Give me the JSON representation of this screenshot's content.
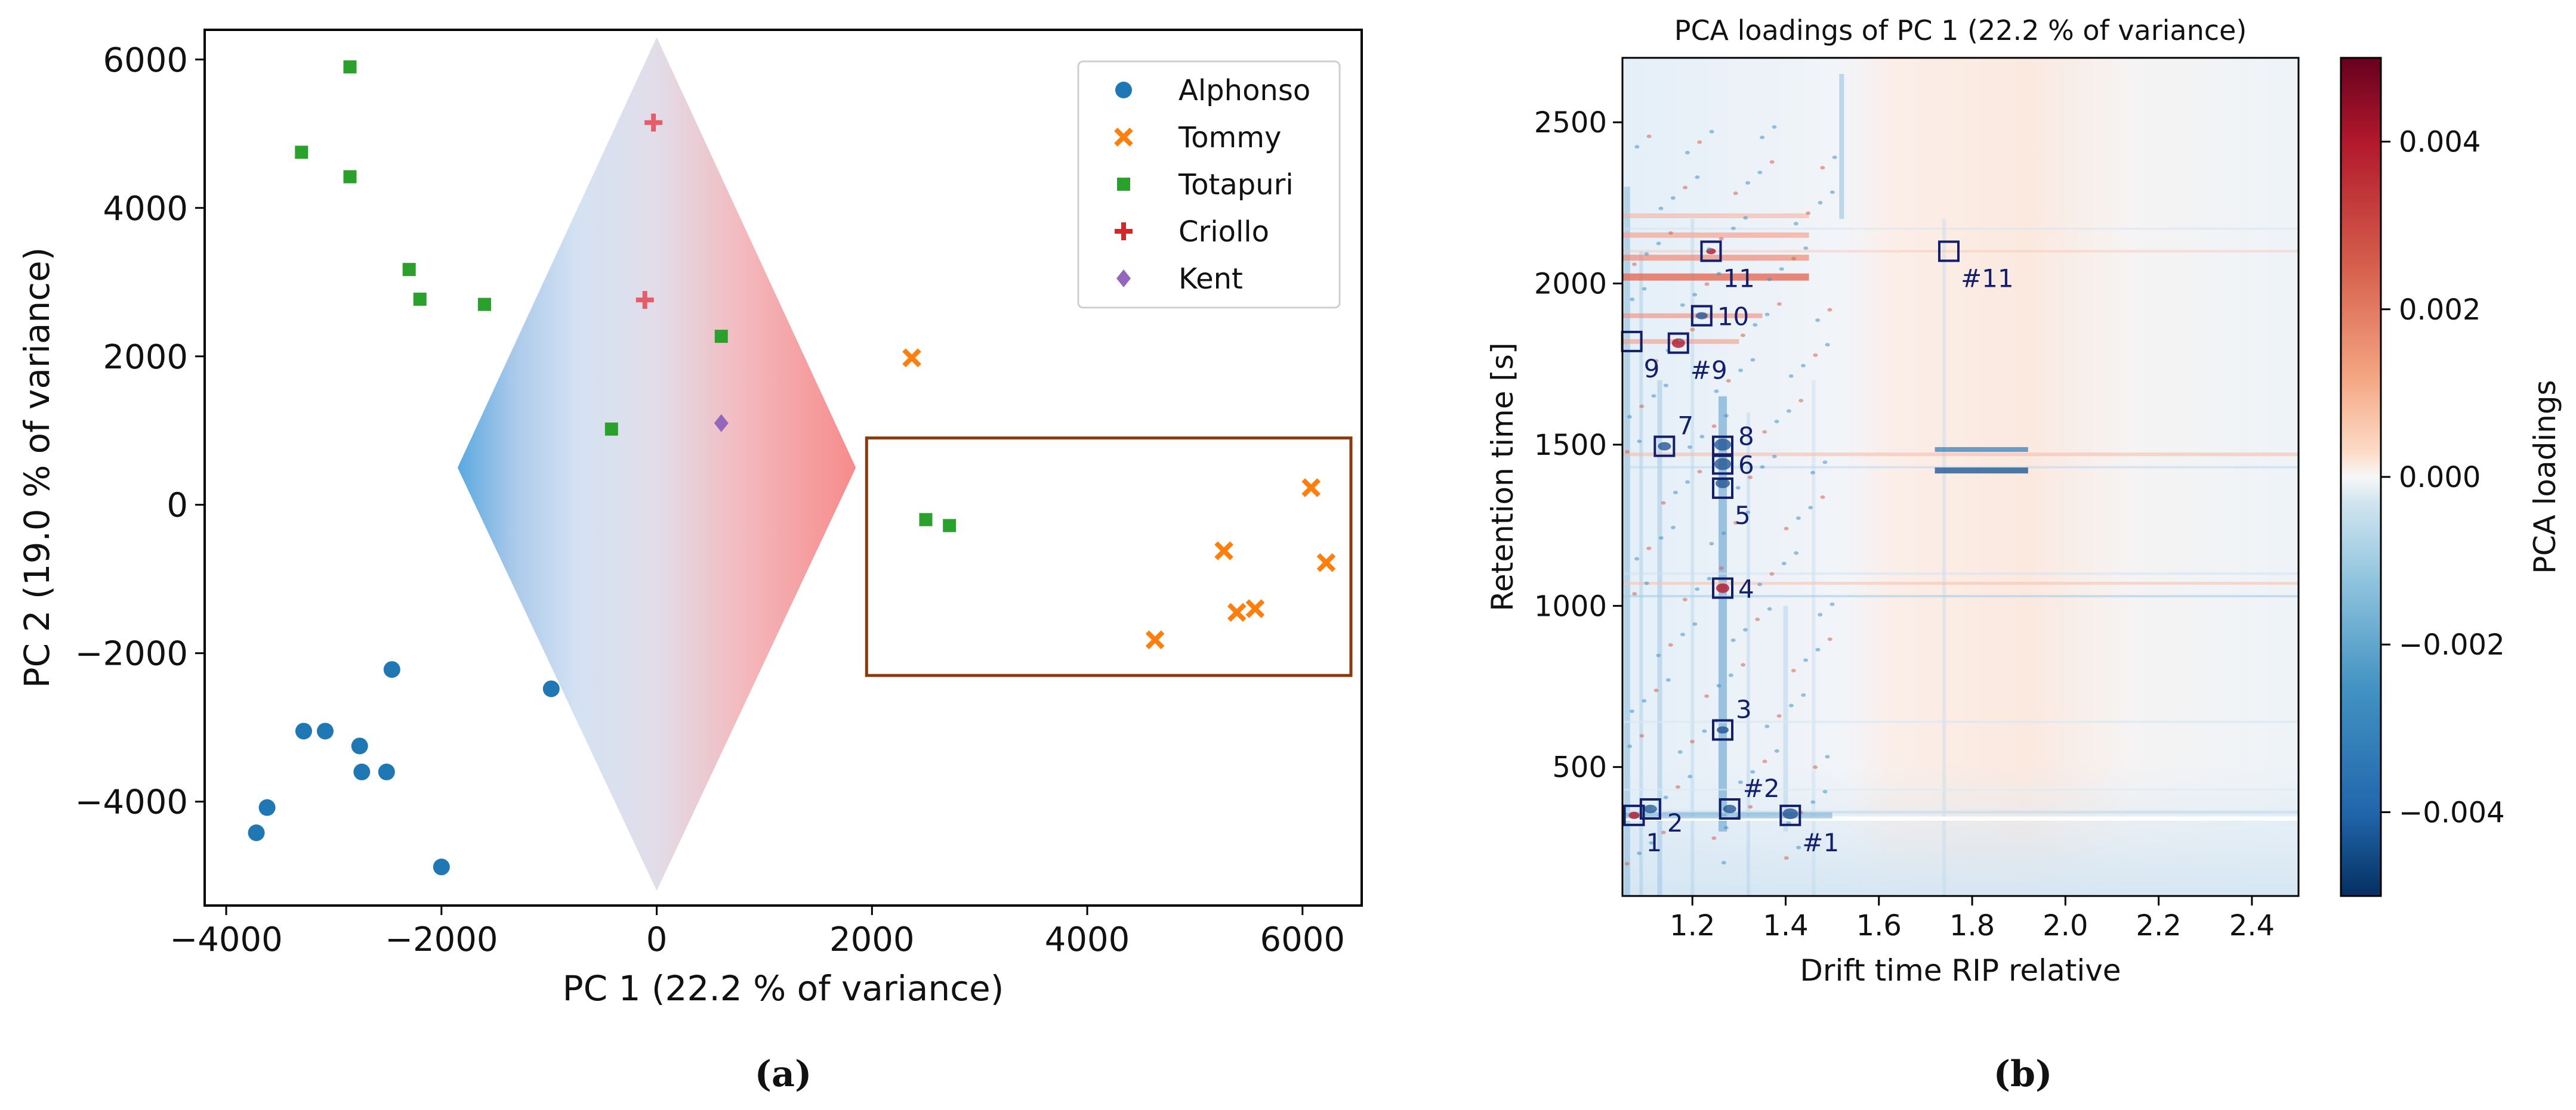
{
  "chart_data": [
    {
      "type": "scatter",
      "panel_label": "(a)",
      "title": "",
      "xlabel": "PC 1 (22.2 % of variance)",
      "ylabel": "PC 2 (19.0 % of variance)",
      "xlim": [
        -4200,
        6550
      ],
      "ylim": [
        -5400,
        6400
      ],
      "xticks": [
        -4000,
        -2000,
        0,
        2000,
        4000,
        6000
      ],
      "yticks": [
        -4000,
        -2000,
        0,
        2000,
        4000,
        6000
      ],
      "xtick_labels": [
        "−4000",
        "−2000",
        "0",
        "2000",
        "4000",
        "6000"
      ],
      "ytick_labels": [
        "−4000",
        "−2000",
        "0",
        "2000",
        "4000",
        "6000"
      ],
      "grid": false,
      "legend_position": "top-right",
      "series": [
        {
          "name": "Alphonso",
          "marker": "circle",
          "color": "#1f77b4",
          "x": [
            -3720,
            -3620,
            -3280,
            -3080,
            -2760,
            -2740,
            -2510,
            -2460,
            -2000,
            -980
          ],
          "y": [
            -4420,
            -4080,
            -3050,
            -3050,
            -3250,
            -3600,
            -3600,
            -2220,
            -4880,
            -2480
          ]
        },
        {
          "name": "Tommy",
          "marker": "x",
          "color": "#ff7f0e",
          "x": [
            2370,
            4630,
            5270,
            5390,
            5560,
            6080,
            6220
          ],
          "y": [
            1980,
            -1820,
            -620,
            -1450,
            -1400,
            230,
            -780
          ]
        },
        {
          "name": "Totapuri",
          "marker": "square",
          "color": "#2ca02c",
          "x": [
            -3300,
            -2850,
            -2850,
            -2300,
            -2200,
            -1600,
            -420,
            600,
            2500,
            2720
          ],
          "y": [
            4750,
            5900,
            4420,
            3170,
            2770,
            2700,
            1020,
            2270,
            -200,
            -280
          ]
        },
        {
          "name": "Criollo",
          "marker": "plus",
          "color": "#d62728",
          "x": [
            -110,
            -30
          ],
          "y": [
            2760,
            5150
          ]
        },
        {
          "name": "Kent",
          "marker": "diamond",
          "color": "#9467bd",
          "x": [
            600
          ],
          "y": [
            1100
          ]
        }
      ],
      "annotations": {
        "diamond_region": {
          "x": [
            0,
            1850,
            0,
            -1850
          ],
          "y": [
            6300,
            500,
            -5200,
            500
          ],
          "left_color": "#5aa9e0",
          "right_color": "#f78b8b"
        },
        "highlight_box": {
          "x": [
            1950,
            6450
          ],
          "y": [
            -2300,
            900
          ],
          "color": "#8b3a0e"
        }
      }
    },
    {
      "type": "heatmap",
      "panel_label": "(b)",
      "title": "PCA loadings of PC 1 (22.2 % of variance)",
      "xlabel": "Drift time RIP relative",
      "ylabel": "Retention time [s]",
      "colorbar_label": "PCA loadings",
      "colormap": "RdBu_r",
      "xlim": [
        1.05,
        2.5
      ],
      "ylim": [
        100,
        2700
      ],
      "xticks": [
        1.2,
        1.4,
        1.6,
        1.8,
        2.0,
        2.2,
        2.4
      ],
      "xtick_labels": [
        "1.2",
        "1.4",
        "1.6",
        "1.8",
        "2.0",
        "2.2",
        "2.4"
      ],
      "yticks": [
        500,
        1000,
        1500,
        2000,
        2500
      ],
      "ytick_labels": [
        "500",
        "1000",
        "1500",
        "2000",
        "2500"
      ],
      "clim": [
        -0.005,
        0.005
      ],
      "cbar_ticks": [
        0.004,
        0.002,
        0.0,
        -0.002,
        -0.004
      ],
      "cbar_tick_labels": [
        "0.004",
        "0.002",
        "0.000",
        "−0.002",
        "−0.004"
      ],
      "marked_peaks": [
        {
          "label": "1",
          "x": 1.075,
          "y": 350,
          "label_pos": "below-right"
        },
        {
          "label": "2",
          "x": 1.11,
          "y": 370,
          "label_pos": "right-low"
        },
        {
          "label": "#2",
          "x": 1.28,
          "y": 370,
          "label_pos": "above-right"
        },
        {
          "label": "#1",
          "x": 1.41,
          "y": 350,
          "label_pos": "below-right"
        },
        {
          "label": "3",
          "x": 1.265,
          "y": 615,
          "label_pos": "above-right"
        },
        {
          "label": "4",
          "x": 1.265,
          "y": 1055,
          "label_pos": "right"
        },
        {
          "label": "5",
          "x": 1.265,
          "y": 1365,
          "label_pos": "below-right"
        },
        {
          "label": "6",
          "x": 1.265,
          "y": 1440,
          "label_pos": "right"
        },
        {
          "label": "8",
          "x": 1.265,
          "y": 1495,
          "label_pos": "right-high"
        },
        {
          "label": "7",
          "x": 1.14,
          "y": 1495,
          "label_pos": "above-right"
        },
        {
          "label": "9",
          "x": 1.07,
          "y": 1820,
          "label_pos": "below-right"
        },
        {
          "label": "#9",
          "x": 1.17,
          "y": 1815,
          "label_pos": "below-right"
        },
        {
          "label": "10",
          "x": 1.22,
          "y": 1900,
          "label_pos": "right"
        },
        {
          "label": "11",
          "x": 1.24,
          "y": 2100,
          "label_pos": "below-right"
        },
        {
          "label": "#11",
          "x": 1.75,
          "y": 2100,
          "label_pos": "below-right"
        }
      ]
    }
  ]
}
